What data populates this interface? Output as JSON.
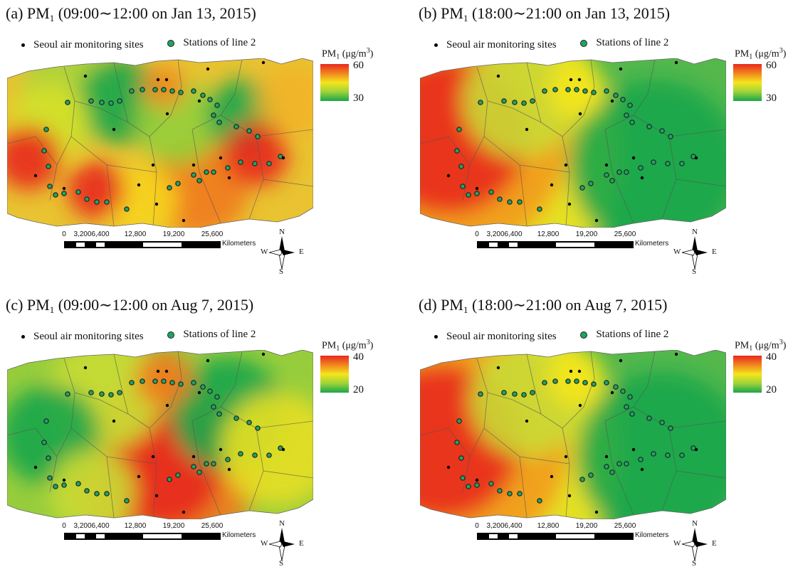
{
  "legend": {
    "monitoring_sites": "Seoul air monitoring sites",
    "stations": "Stations of line 2"
  },
  "colorbar": {
    "label_prefix": "PM",
    "label_sub": "1",
    "label_unit_open": " (μg/m",
    "label_sup": "3",
    "label_close": ")"
  },
  "scale_bar": {
    "ticks": [
      "0",
      "3,200",
      "6,400",
      "12,800",
      "19,200",
      "25,600"
    ],
    "unit": "Kilometers"
  },
  "compass": {
    "n": "N",
    "s": "S",
    "e": "E",
    "w": "W"
  },
  "colors": {
    "high": "#e8281e",
    "mid": "#f5e51c",
    "low": "#1aa64a",
    "station_fill": "#1fa463",
    "site_fill": "#000000"
  },
  "panels": [
    {
      "tag": "(a) PM",
      "sub": "1",
      "rest": " (09:00∼12:00 on Jan 13, 2015)",
      "cb_max": "60",
      "cb_min": "30",
      "pattern": "mixed-hotspots"
    },
    {
      "tag": "(b) PM",
      "sub": "1",
      "rest": " (18:00∼21:00 on Jan 13, 2015)",
      "cb_max": "60",
      "cb_min": "30",
      "pattern": "west-high"
    },
    {
      "tag": "(c) PM",
      "sub": "1",
      "rest": " (09:00∼12:00 on Aug 7, 2015)",
      "cb_max": "40",
      "cb_min": "20",
      "pattern": "south-central-high"
    },
    {
      "tag": "(d) PM",
      "sub": "1",
      "rest": " (18:00∼21:00 on Aug 7, 2015)",
      "cb_max": "40",
      "cb_min": "20",
      "pattern": "west-high"
    }
  ]
}
